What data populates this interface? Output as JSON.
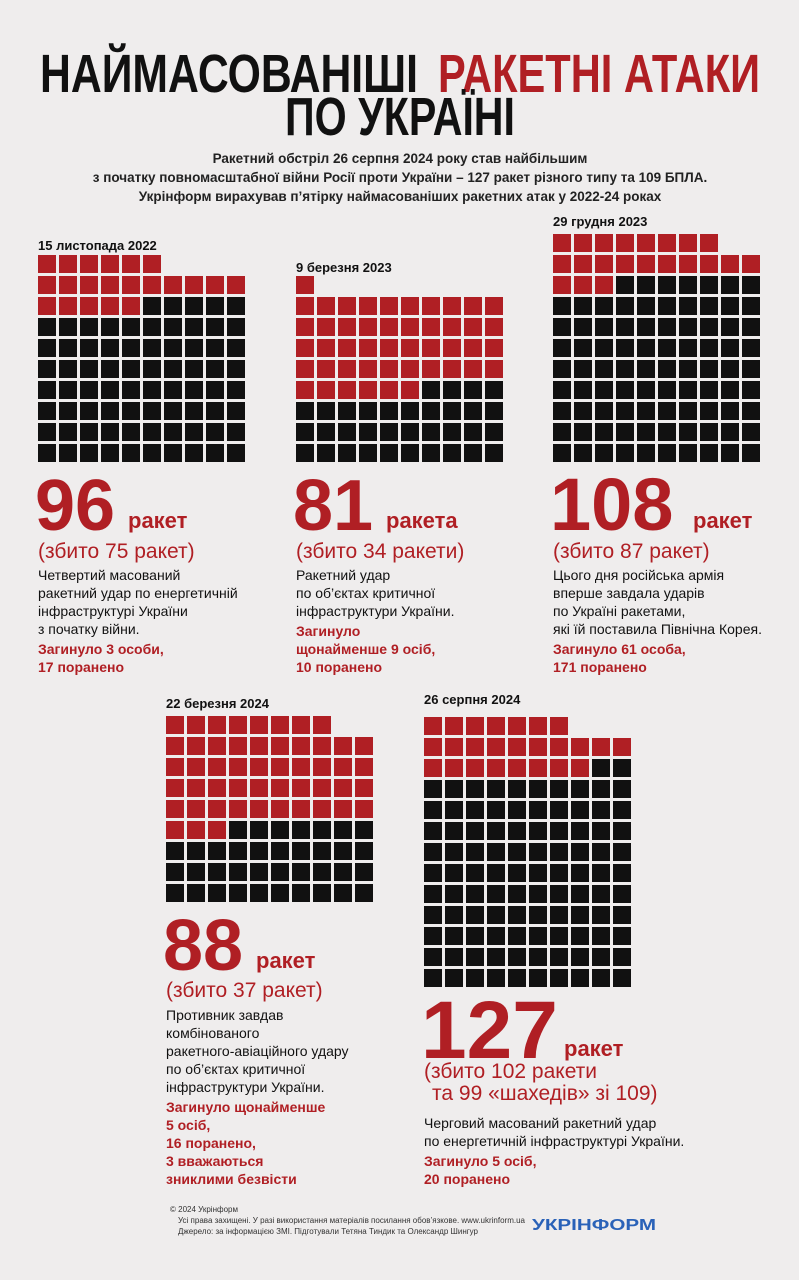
{
  "header": {
    "title_black": "НАЙМАСОВАНІШІ",
    "title_red": "РАКЕТНІ АТАКИ",
    "title_line2": "ПО УКРАЇНІ",
    "subtitle": [
      "Ракетний обстріл 26 серпня 2024 року став найбільшим",
      "з початку повномасштабної війни Росії проти України – 127 ракет різного типу та 109 БПЛА.",
      "Укрінформ вирахував п’ятірку наймасованіших ракетних атак у 2022-24 роках"
    ]
  },
  "attacks": [
    {
      "date": "15 листопада 2022",
      "count": 96,
      "unit": "ракет",
      "shot_down": 75,
      "shot_down_label": [
        "(збито 75 ракет)"
      ],
      "description": [
        "Четвертий масований",
        "ракетний удар по енергетичній",
        "інфраструктурі України",
        "з початку війни."
      ],
      "casualties": [
        "Загинуло 3 особи,",
        "17 поранено"
      ]
    },
    {
      "date": "9 березня 2023",
      "count": 81,
      "unit": "ракета",
      "shot_down": 34,
      "shot_down_label": [
        "(збито 34 ракети)"
      ],
      "description": [
        "Ракетний удар",
        "по об’єктах критичної",
        "інфраструктури України."
      ],
      "casualties": [
        "Загинуло",
        "щонайменше 9 осіб,",
        "10 поранено"
      ]
    },
    {
      "date": "29 грудня 2023",
      "count": 108,
      "unit": "ракет",
      "shot_down": 87,
      "shot_down_label": [
        "(збито 87 ракет)"
      ],
      "description": [
        "Цього дня російська армія",
        "вперше завдала ударів",
        "по Україні ракетами,",
        "які їй поставила Північна Корея."
      ],
      "casualties": [
        "Загинуло 61 особа,",
        "171 поранено"
      ]
    },
    {
      "date": "22 березня 2024",
      "count": 88,
      "unit": "ракет",
      "shot_down": 37,
      "shot_down_label": [
        "(збито 37 ракет)"
      ],
      "description": [
        "Противник завдав",
        "комбінованого",
        "ракетного-авіаційного удару",
        "по об’єктах критичної",
        "інфраструктури України."
      ],
      "casualties": [
        "Загинуло щонайменше",
        "5 осіб,",
        "16 поранено,",
        "3 вважаються",
        "зниклими безвісти"
      ]
    },
    {
      "date": "26 серпня 2024",
      "count": 127,
      "unit": "ракет",
      "shot_down": 102,
      "shot_down_label": [
        "(збито 102 ракети",
        "та 99 «шахедів» зі 109)"
      ],
      "description": [
        "Черговий масований ракетний удар",
        "по енергетичній інфраструктурі України."
      ],
      "casualties": [
        "Загинуло 5 осіб,",
        "20 поранено"
      ]
    }
  ],
  "footer": {
    "copyright": "© 2024 Укрінформ",
    "rights": "Усі права захищені. У разі використання матеріалів посилання обов’язкове. www.ukrinform.ua",
    "source": "Джерело: за інформацією ЗМІ. Підготували Тетяна Тиндик та Олександр Шингур",
    "logo": "УКРІНФОРМ"
  }
}
